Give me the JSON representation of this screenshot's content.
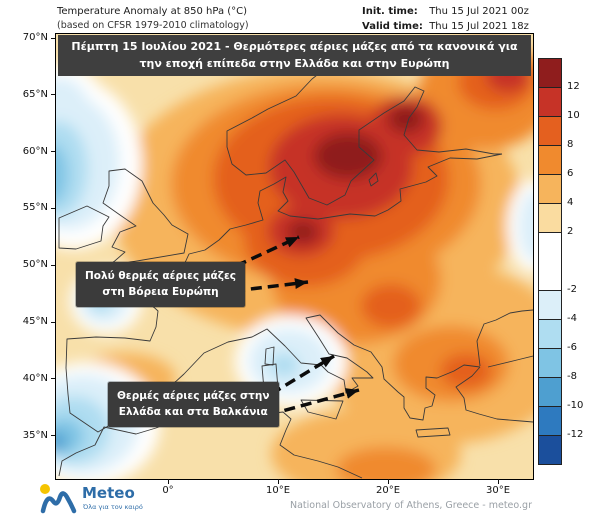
{
  "header": {
    "title": "Temperature Anomaly at 850 hPa (°C)",
    "subtitle": "(based on CFSR 1979-2010 climatology)",
    "init_label": "Init. time:",
    "init_value": "Thu 15 Jul 2021 00z",
    "valid_label": "Valid time:",
    "valid_value": "Thu 15 Jul 2021 18z"
  },
  "banner": {
    "text": "Πέμπτη 15 Ιουλίου 2021 - Θερμότερες αέριες μάζες από τα κανονικά για την εποχή επίπεδα στην Ελλάδα και στην Ευρώπη"
  },
  "map": {
    "lat_labels": [
      "70°N",
      "65°N",
      "60°N",
      "55°N",
      "50°N",
      "45°N",
      "40°N",
      "35°N"
    ],
    "lon_labels": [
      "0°",
      "10°E",
      "20°E",
      "30°E"
    ],
    "annotations": [
      {
        "line1": "Πολύ θερμές αέριες μάζες",
        "line2": "στη Βόρεια Ευρώπη"
      },
      {
        "line1": "Θερμές αέριες μάζες στην",
        "line2": "Ελλάδα και στα Βαλκάνια"
      }
    ]
  },
  "colorbar": {
    "boundary_labels": [
      "12",
      "10",
      "8",
      "6",
      "4",
      "2",
      "-2",
      "-4",
      "-6",
      "-8",
      "-10",
      "-12"
    ],
    "segment_colors": [
      "#8F1D1D",
      "#C63327",
      "#E4601F",
      "#F08A2E",
      "#F6B45C",
      "#FADCA0",
      "#FFFFFF",
      "#DCEFF9",
      "#AFDDF1",
      "#7FC4E4",
      "#4E9FD0",
      "#2E7ABF",
      "#1B4F9C"
    ]
  },
  "footer": {
    "brand": "Meteo",
    "tagline": "Όλα για τον καιρό",
    "credit": "National Observatory of Athens, Greece - meteo.gr"
  }
}
